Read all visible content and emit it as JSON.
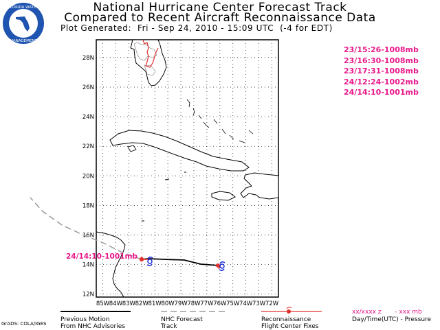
{
  "header": {
    "title_line1": "National Hurricane Center Forecast Track",
    "title_line2": "Compared to Recent Aircraft Reconnaissance Data",
    "subtitle": "Plot Generated:  Fri - Sep 24, 2010 - 15:09 UTC  (-4 for EDT)"
  },
  "logo": {
    "icon": "florida-water-management-seal"
  },
  "recon_fixes": [
    "23/15:26-1008mb",
    "23/16:30-1008mb",
    "23/17:31-1008mb",
    "24/12:24-1002mb",
    "24/14:10-1001mb"
  ],
  "map": {
    "lon_labels": [
      "85W",
      "84W",
      "83W",
      "82W",
      "81W",
      "80W",
      "79W",
      "78W",
      "77W",
      "76W",
      "75W",
      "74W",
      "73W",
      "72W"
    ],
    "lat_labels": [
      "28N",
      "26N",
      "24N",
      "22N",
      "20N",
      "18N",
      "16N",
      "14N",
      "12N"
    ],
    "lon_range": [
      -85.5,
      -71.5
    ],
    "lat_range": [
      11.8,
      29.2
    ],
    "grid": "dotted",
    "latest_fix_label": "24/14:10-1001mb",
    "colors": {
      "recon": "#e8178a",
      "previous_motion": "#000000",
      "forecast": "#9a9a9a",
      "symbol": "#1a2bd8",
      "fix_marker": "#e0302a"
    }
  },
  "legend": {
    "previous_motion": [
      "Previous Motion",
      "From NHC Advisories"
    ],
    "forecast_track": [
      "NHC Forecast",
      "Track"
    ],
    "recon": [
      "Reconnaissance",
      "Flight Center Fixes"
    ],
    "key_line1_left": "xx/xxxx z",
    "key_line1_right": "- xxx mb",
    "key_line2": "Day/Time(UTC) - Pressure"
  },
  "footer": {
    "credit": "GrADS: COLA/IGES"
  }
}
